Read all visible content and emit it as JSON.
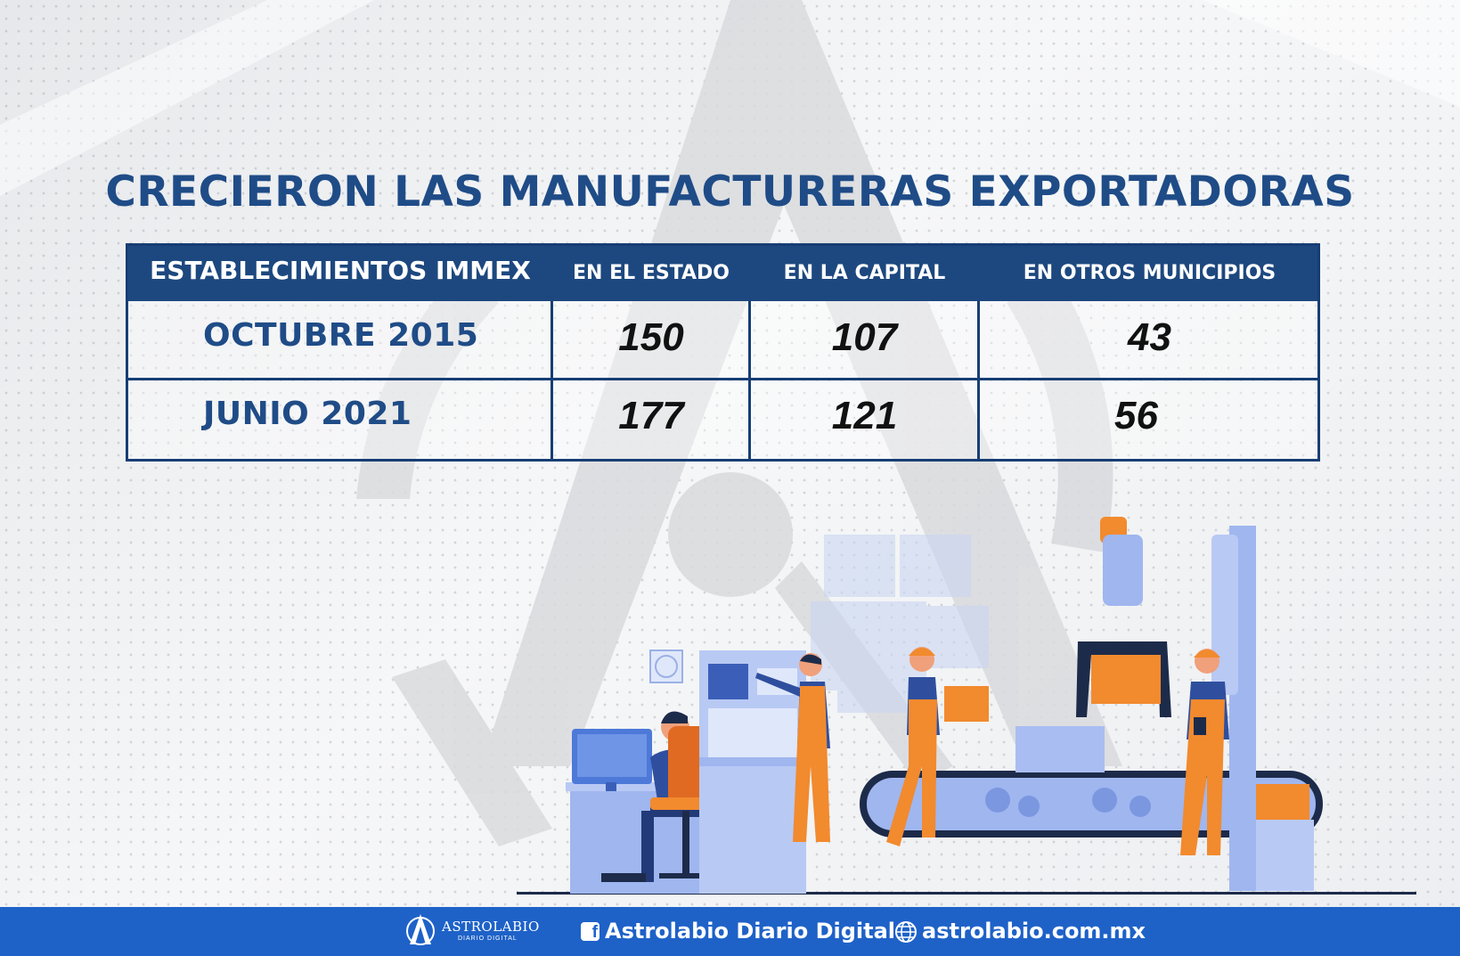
{
  "title": "CRECIERON LAS MANUFACTURERAS EXPORTADORAS",
  "table": {
    "headers": [
      "ESTABLECIMIENTOS IMMEX",
      "EN EL ESTADO",
      "EN LA CAPITAL",
      "EN OTROS MUNICIPIOS"
    ],
    "rows": [
      {
        "label": "OCTUBRE 2015",
        "values": [
          "150",
          "107",
          "43"
        ]
      },
      {
        "label": "JUNIO 2021",
        "values": [
          "177",
          "121",
          "56"
        ]
      }
    ]
  },
  "footer": {
    "logo_text": "ASTROLABIO",
    "logo_subtext": "DIARIO DIGITAL",
    "facebook_icon": "facebook-icon",
    "facebook_label": "Astrolabio Diario Digital",
    "web_icon": "globe-icon",
    "website": "astrolabio.com.mx"
  },
  "colors": {
    "title": "#1f4c87",
    "header_bg": "#1d487f",
    "footer_bg": "#1e62c8",
    "worker_orange": "#f28a2e",
    "machine_blue": "#8fa9ec"
  }
}
